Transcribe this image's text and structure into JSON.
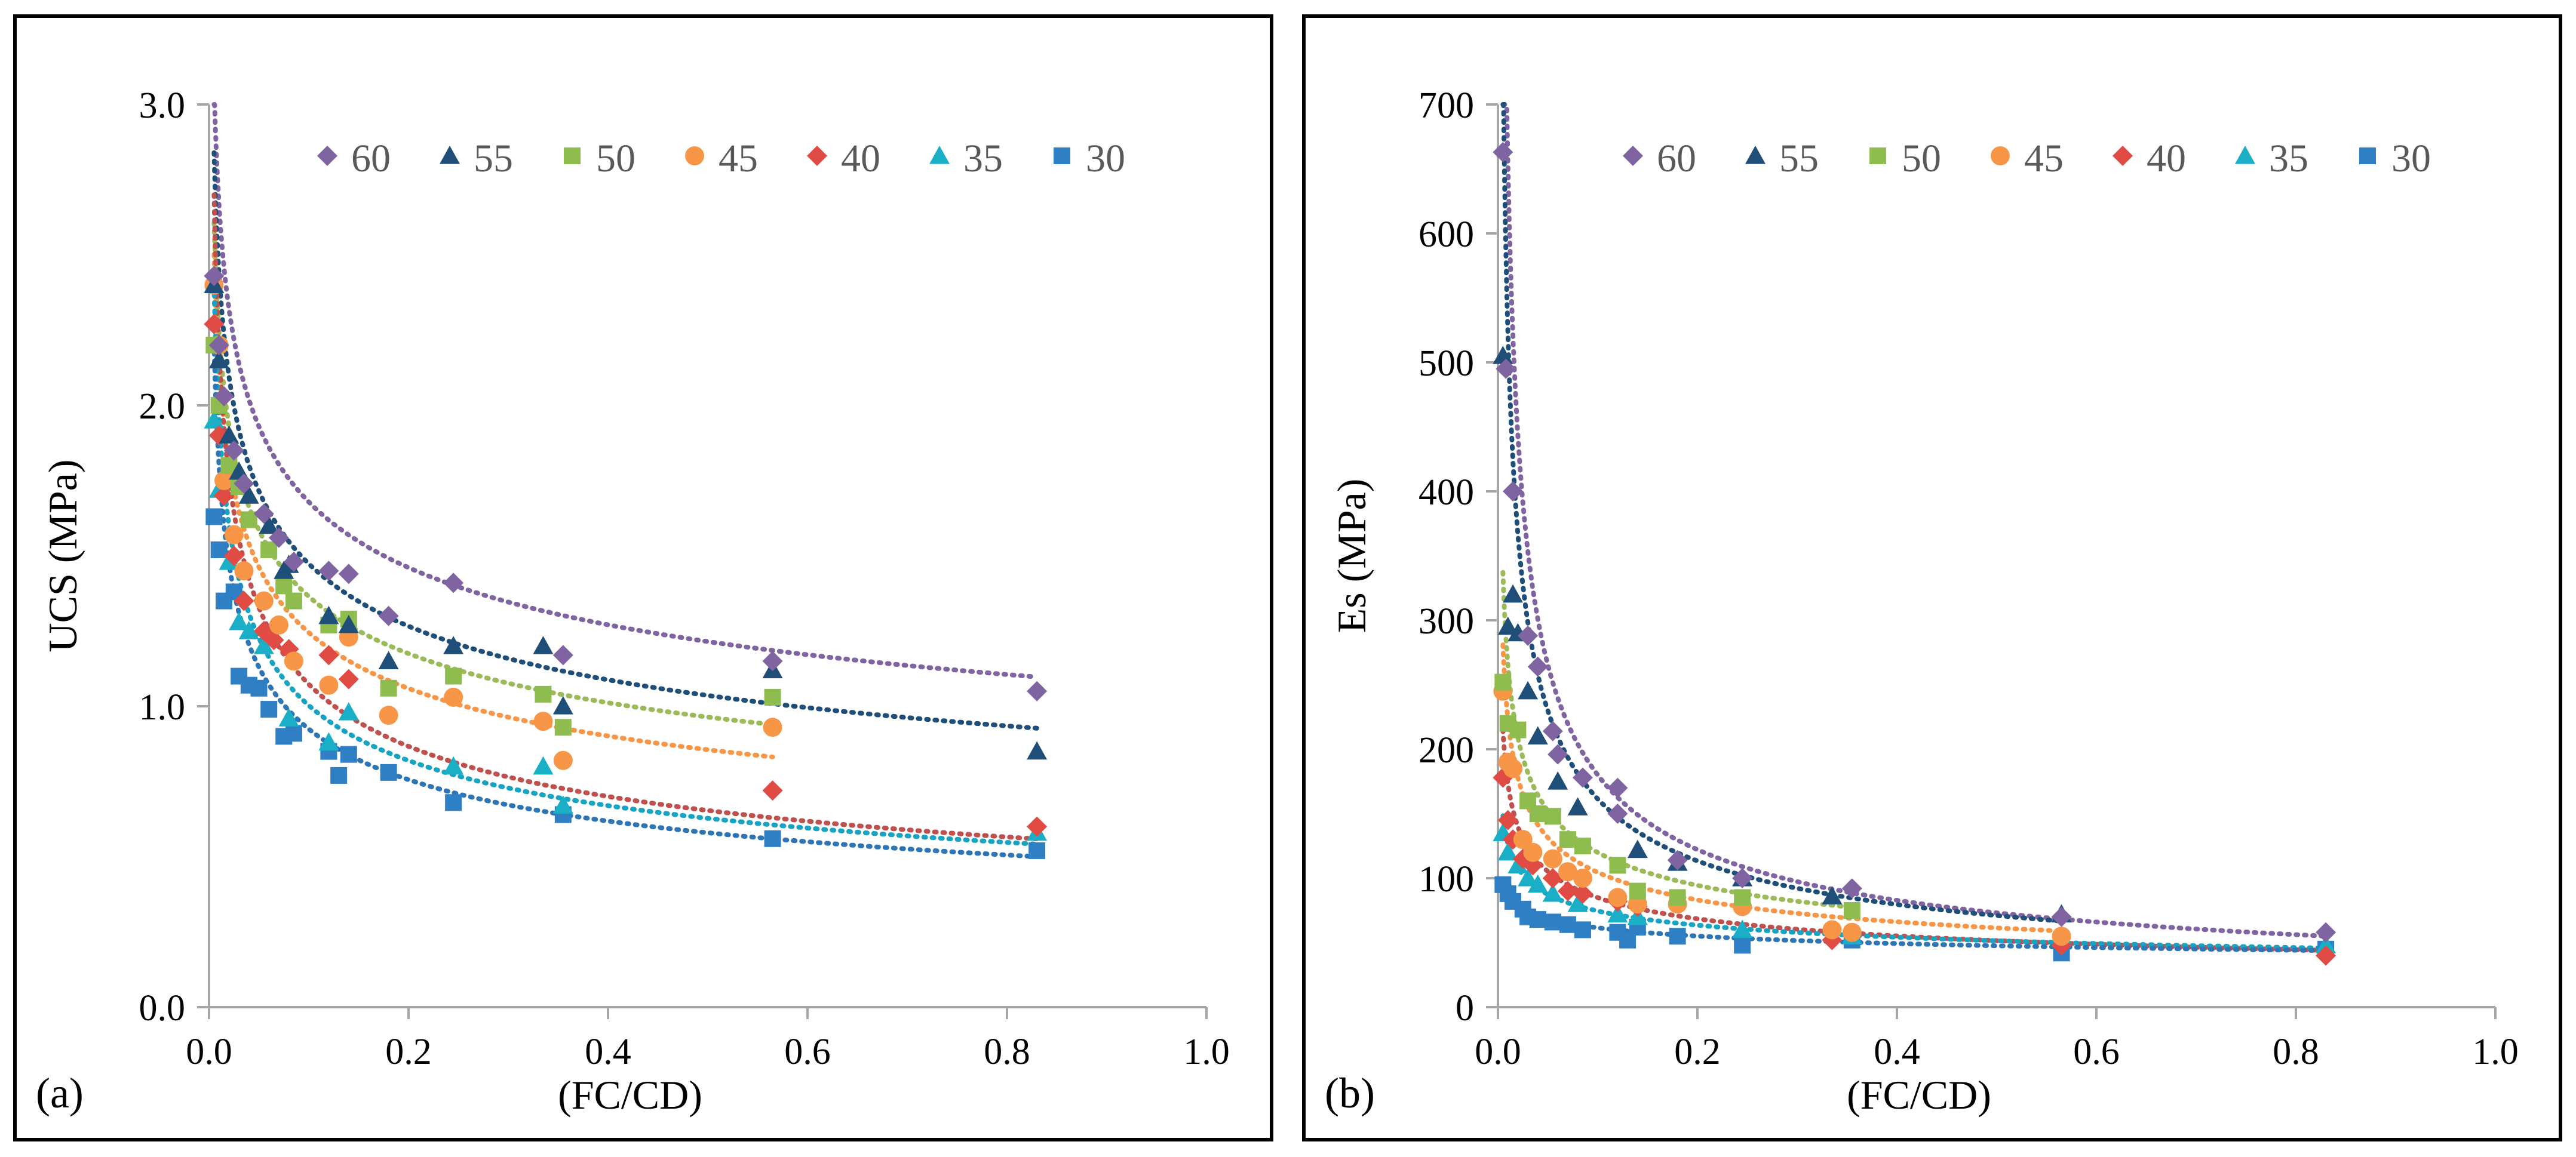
{
  "chart_data": [
    {
      "type": "scatter",
      "panel_label": "(a)",
      "xlabel": "(FC/CD)",
      "ylabel": "UCS (MPa)",
      "xlim": [
        0.0,
        1.0
      ],
      "ylim": [
        0.0,
        3.0
      ],
      "xticks": [
        "0.0",
        "0.2",
        "0.4",
        "0.6",
        "0.8",
        "1.0"
      ],
      "yticks": [
        "0.0",
        "1.0",
        "2.0",
        "3.0"
      ],
      "legend": "top, horizontal",
      "series": [
        {
          "name": "60",
          "marker": "diamond",
          "color": "#8064A2",
          "x": [
            0.005,
            0.01,
            0.015,
            0.025,
            0.035,
            0.055,
            0.07,
            0.085,
            0.12,
            0.14,
            0.18,
            0.245,
            0.355,
            0.565,
            0.83
          ],
          "y": [
            2.43,
            2.2,
            2.03,
            1.85,
            1.74,
            1.64,
            1.56,
            1.48,
            1.45,
            1.44,
            1.3,
            1.41,
            1.17,
            1.15,
            1.05
          ],
          "trend": {
            "a": 1.057,
            "b": -0.201,
            "color": "#8064A2"
          }
        },
        {
          "name": "55",
          "marker": "triangle",
          "color": "#1F4E79",
          "x": [
            0.005,
            0.01,
            0.02,
            0.03,
            0.04,
            0.06,
            0.075,
            0.08,
            0.12,
            0.14,
            0.18,
            0.245,
            0.335,
            0.355,
            0.565,
            0.83
          ],
          "y": [
            2.4,
            2.15,
            1.9,
            1.78,
            1.7,
            1.6,
            1.45,
            1.47,
            1.3,
            1.27,
            1.15,
            1.2,
            1.2,
            1.0,
            1.12,
            0.85
          ],
          "trend": {
            "a": 0.89,
            "b": -0.219,
            "color": "#1F4E79"
          }
        },
        {
          "name": "50",
          "marker": "square",
          "color": "#8FBC4F",
          "x": [
            0.005,
            0.01,
            0.02,
            0.03,
            0.04,
            0.06,
            0.075,
            0.085,
            0.12,
            0.14,
            0.18,
            0.245,
            0.335,
            0.355,
            0.565
          ],
          "y": [
            2.2,
            2.0,
            1.8,
            1.73,
            1.62,
            1.52,
            1.4,
            1.35,
            1.27,
            1.29,
            1.06,
            1.1,
            1.04,
            0.93,
            1.03
          ],
          "trend": {
            "a": 0.83,
            "b": -0.216,
            "color": "#9BBB59"
          }
        },
        {
          "name": "45",
          "marker": "circle",
          "color": "#F79646",
          "x": [
            0.005,
            0.01,
            0.015,
            0.025,
            0.035,
            0.055,
            0.07,
            0.085,
            0.12,
            0.14,
            0.18,
            0.245,
            0.335,
            0.355,
            0.565
          ],
          "y": [
            2.4,
            2.2,
            1.75,
            1.57,
            1.45,
            1.35,
            1.27,
            1.15,
            1.07,
            1.23,
            0.97,
            1.03,
            0.95,
            0.82,
            0.93
          ],
          "trend": {
            "a": 0.728,
            "b": -0.233,
            "color": "#F79646"
          }
        },
        {
          "name": "40",
          "marker": "diamond",
          "color": "#E04B43",
          "x": [
            0.005,
            0.01,
            0.015,
            0.025,
            0.035,
            0.055,
            0.065,
            0.08,
            0.12,
            0.14,
            0.565,
            0.83
          ],
          "y": [
            2.27,
            1.9,
            1.7,
            1.5,
            1.35,
            1.25,
            1.22,
            1.19,
            1.17,
            1.09,
            0.72,
            0.6
          ],
          "trend": {
            "a": 0.528,
            "b": -0.308,
            "color": "#C0504D"
          }
        },
        {
          "name": "35",
          "marker": "triangle",
          "color": "#1AAFC6",
          "x": [
            0.005,
            0.01,
            0.02,
            0.03,
            0.04,
            0.055,
            0.08,
            0.12,
            0.14,
            0.245,
            0.335,
            0.355,
            0.83
          ],
          "y": [
            1.95,
            1.72,
            1.48,
            1.28,
            1.25,
            1.2,
            0.96,
            0.88,
            0.98,
            0.8,
            0.8,
            0.67,
            0.58
          ],
          "trend": {
            "a": 0.513,
            "b": -0.291,
            "color": "#17A3C2"
          }
        },
        {
          "name": "30",
          "marker": "square",
          "color": "#2E7FC4",
          "x": [
            0.005,
            0.01,
            0.015,
            0.025,
            0.03,
            0.04,
            0.05,
            0.06,
            0.075,
            0.085,
            0.12,
            0.13,
            0.14,
            0.18,
            0.245,
            0.355,
            0.565,
            0.83
          ],
          "y": [
            1.63,
            1.52,
            1.35,
            1.38,
            1.1,
            1.07,
            1.06,
            0.99,
            0.9,
            0.91,
            0.85,
            0.77,
            0.84,
            0.78,
            0.68,
            0.64,
            0.56,
            0.52
          ],
          "trend": {
            "a": 0.474,
            "b": -0.29,
            "color": "#2E75B6"
          }
        }
      ]
    },
    {
      "type": "scatter",
      "panel_label": "(b)",
      "xlabel": "(FC/CD)",
      "ylabel": "Es (MPa)",
      "xlim": [
        0.0,
        1.0
      ],
      "ylim": [
        0,
        700
      ],
      "xticks": [
        "0.0",
        "0.2",
        "0.4",
        "0.6",
        "0.8",
        "1.0"
      ],
      "yticks": [
        "0",
        "100",
        "200",
        "300",
        "400",
        "500",
        "600",
        "700"
      ],
      "legend": "top, horizontal",
      "series": [
        {
          "name": "60",
          "marker": "diamond",
          "color": "#8064A2",
          "x": [
            0.005,
            0.008,
            0.015,
            0.03,
            0.04,
            0.055,
            0.06,
            0.085,
            0.12,
            0.12,
            0.18,
            0.245,
            0.355,
            0.565,
            0.83
          ],
          "y": [
            663,
            495,
            400,
            288,
            264,
            214,
            196,
            178,
            170,
            150,
            114,
            100,
            92,
            70,
            58
          ],
          "trend": {
            "a": 49.6,
            "b": -0.56,
            "color": "#8064A2"
          }
        },
        {
          "name": "55",
          "marker": "triangle",
          "color": "#1F4E79",
          "x": [
            0.005,
            0.01,
            0.015,
            0.02,
            0.03,
            0.04,
            0.06,
            0.08,
            0.14,
            0.18,
            0.245,
            0.335,
            0.565
          ],
          "y": [
            505,
            295,
            320,
            290,
            245,
            210,
            175,
            155,
            122,
            112,
            100,
            86,
            72
          ],
          "trend": {
            "a": 49.9,
            "b": -0.51,
            "color": "#1F4E79"
          }
        },
        {
          "name": "50",
          "marker": "square",
          "color": "#8FBC4F",
          "x": [
            0.005,
            0.01,
            0.02,
            0.03,
            0.04,
            0.055,
            0.07,
            0.085,
            0.12,
            0.14,
            0.18,
            0.245,
            0.355
          ],
          "y": [
            252,
            220,
            215,
            160,
            150,
            148,
            130,
            125,
            110,
            90,
            85,
            85,
            75
          ],
          "trend": {
            "a": 54.2,
            "b": -0.345,
            "color": "#9BBB59"
          }
        },
        {
          "name": "45",
          "marker": "circle",
          "color": "#F79646",
          "x": [
            0.005,
            0.01,
            0.015,
            0.025,
            0.035,
            0.055,
            0.07,
            0.085,
            0.12,
            0.14,
            0.18,
            0.245,
            0.335,
            0.355,
            0.565
          ],
          "y": [
            245,
            190,
            185,
            130,
            120,
            115,
            105,
            100,
            85,
            80,
            80,
            78,
            60,
            58,
            55
          ],
          "trend": {
            "a": 48.9,
            "b": -0.33,
            "color": "#F79646"
          }
        },
        {
          "name": "40",
          "marker": "diamond",
          "color": "#E04B43",
          "x": [
            0.005,
            0.01,
            0.015,
            0.025,
            0.035,
            0.055,
            0.07,
            0.085,
            0.12,
            0.14,
            0.335,
            0.565,
            0.83
          ],
          "y": [
            178,
            145,
            130,
            115,
            110,
            100,
            90,
            88,
            82,
            78,
            52,
            48,
            40
          ],
          "trend": {
            "a": 41.6,
            "b": -0.31,
            "color": "#C0504D"
          }
        },
        {
          "name": "35",
          "marker": "triangle",
          "color": "#1AAFC6",
          "x": [
            0.005,
            0.01,
            0.02,
            0.03,
            0.04,
            0.055,
            0.08,
            0.12,
            0.14,
            0.245,
            0.355,
            0.83
          ],
          "y": [
            135,
            120,
            110,
            100,
            95,
            88,
            80,
            72,
            70,
            60,
            55,
            48
          ],
          "trend": {
            "a": 43.9,
            "b": -0.23,
            "color": "#17A3C2"
          }
        },
        {
          "name": "30",
          "marker": "square",
          "color": "#2E7FC4",
          "x": [
            0.005,
            0.01,
            0.015,
            0.025,
            0.03,
            0.04,
            0.055,
            0.07,
            0.085,
            0.12,
            0.13,
            0.14,
            0.18,
            0.245,
            0.355,
            0.565,
            0.83
          ],
          "y": [
            95,
            88,
            82,
            76,
            70,
            68,
            66,
            64,
            60,
            58,
            52,
            62,
            55,
            48,
            52,
            42,
            45
          ],
          "trend": {
            "a": 42.6,
            "b": -0.16,
            "color": "#2E75B6"
          }
        }
      ]
    }
  ]
}
